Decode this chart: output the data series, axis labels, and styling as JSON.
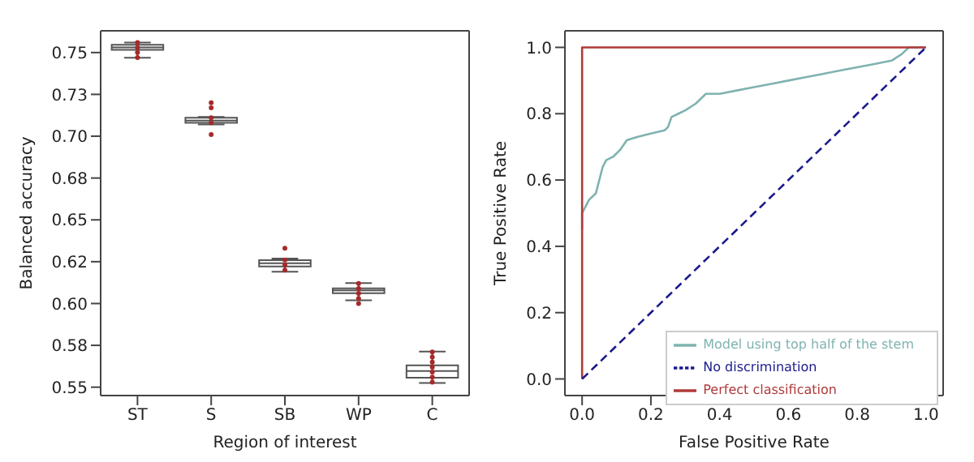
{
  "chart_data": [
    {
      "type": "box",
      "xlabel": "Region of interest",
      "ylabel": "Balanced accuracy",
      "categories": [
        "ST",
        "S",
        "SB",
        "WP",
        "C"
      ],
      "color": "#555555",
      "boxes": [
        {
          "low": 0.7469,
          "q1": 0.7516,
          "median": 0.7531,
          "q3": 0.7547,
          "high": 0.756
        },
        {
          "low": 0.707,
          "q1": 0.708,
          "median": 0.7094,
          "q3": 0.711,
          "high": 0.7115
        },
        {
          "low": 0.619,
          "q1": 0.6222,
          "median": 0.6241,
          "q3": 0.6259,
          "high": 0.6269
        },
        {
          "low": 0.6019,
          "q1": 0.6062,
          "median": 0.6078,
          "q3": 0.6091,
          "high": 0.6122
        },
        {
          "low": 0.5525,
          "q1": 0.5556,
          "median": 0.5597,
          "q3": 0.5631,
          "high": 0.5713
        }
      ],
      "series": [
        {
          "type": "scatter",
          "color": "#a52a2a",
          "x": [
            "ST",
            "ST",
            "ST",
            "ST",
            "S",
            "S",
            "S",
            "S",
            "S",
            "SB",
            "SB",
            "SB",
            "SB",
            "WP",
            "WP",
            "WP",
            "WP",
            "WP",
            "C",
            "C",
            "C",
            "C",
            "C",
            "C",
            "C"
          ],
          "values": [
            0.756,
            0.753,
            0.75,
            0.747,
            0.72,
            0.717,
            0.711,
            0.708,
            0.701,
            0.633,
            0.626,
            0.623,
            0.62,
            0.612,
            0.609,
            0.606,
            0.603,
            0.6,
            0.571,
            0.568,
            0.565,
            0.562,
            0.559,
            0.556,
            0.553
          ]
        }
      ],
      "ylim": [
        0.545,
        0.763
      ],
      "yticks": [
        {
          "value": 0.55,
          "label": "0.55"
        },
        {
          "value": 0.575,
          "label": "0.58"
        },
        {
          "value": 0.6,
          "label": "0.60"
        },
        {
          "value": 0.625,
          "label": "0.62"
        },
        {
          "value": 0.65,
          "label": "0.65"
        },
        {
          "value": 0.675,
          "label": "0.68"
        },
        {
          "value": 0.7,
          "label": "0.70"
        },
        {
          "value": 0.725,
          "label": "0.73"
        },
        {
          "value": 0.75,
          "label": "0.75"
        }
      ]
    },
    {
      "type": "line",
      "xlabel": "False Positive Rate",
      "ylabel": "True Positive Rate",
      "legend": "bottom right",
      "xlim": [
        -0.05,
        1.05
      ],
      "ylim": [
        -0.05,
        1.05
      ],
      "xticks": [
        {
          "value": 0,
          "label": "0.0"
        },
        {
          "value": 0.2,
          "label": "0.2"
        },
        {
          "value": 0.4,
          "label": "0.4"
        },
        {
          "value": 0.6,
          "label": "0.6"
        },
        {
          "value": 0.8,
          "label": "0.8"
        },
        {
          "value": 1,
          "label": "1.0"
        }
      ],
      "yticks": [
        {
          "value": 0,
          "label": "0.0"
        },
        {
          "value": 0.2,
          "label": "0.2"
        },
        {
          "value": 0.4,
          "label": "0.4"
        },
        {
          "value": 0.6,
          "label": "0.6"
        },
        {
          "value": 0.8,
          "label": "0.8"
        },
        {
          "value": 1,
          "label": "1.0"
        }
      ],
      "series": [
        {
          "name": "Model using top half of the stem",
          "color": "#7fb3b0",
          "line_style": "solid",
          "x": [
            0,
            0,
            0.01,
            0.02,
            0.04,
            0.05,
            0.06,
            0.07,
            0.09,
            0.11,
            0.13,
            0.16,
            0.2,
            0.24,
            0.25,
            0.26,
            0.28,
            0.3,
            0.33,
            0.36,
            0.4,
            0.45,
            0.5,
            0.55,
            0.6,
            0.65,
            0.7,
            0.75,
            0.8,
            0.85,
            0.9,
            0.93,
            0.95,
            1
          ],
          "values": [
            0.45,
            0.5,
            0.52,
            0.54,
            0.56,
            0.6,
            0.64,
            0.66,
            0.67,
            0.69,
            0.72,
            0.73,
            0.74,
            0.75,
            0.76,
            0.79,
            0.8,
            0.81,
            0.83,
            0.86,
            0.86,
            0.87,
            0.88,
            0.89,
            0.9,
            0.91,
            0.92,
            0.93,
            0.94,
            0.95,
            0.96,
            0.98,
            1,
            1
          ]
        },
        {
          "name": "Perfect classification",
          "color": "#b03a3a",
          "line_style": "solid",
          "x": [
            0,
            0,
            1
          ],
          "values": [
            0,
            1,
            1
          ]
        },
        {
          "name": "No discrimination",
          "color": "#1a1a8c",
          "line_style": "dashed",
          "x": [
            0,
            1
          ],
          "values": [
            0,
            1
          ]
        }
      ]
    }
  ]
}
